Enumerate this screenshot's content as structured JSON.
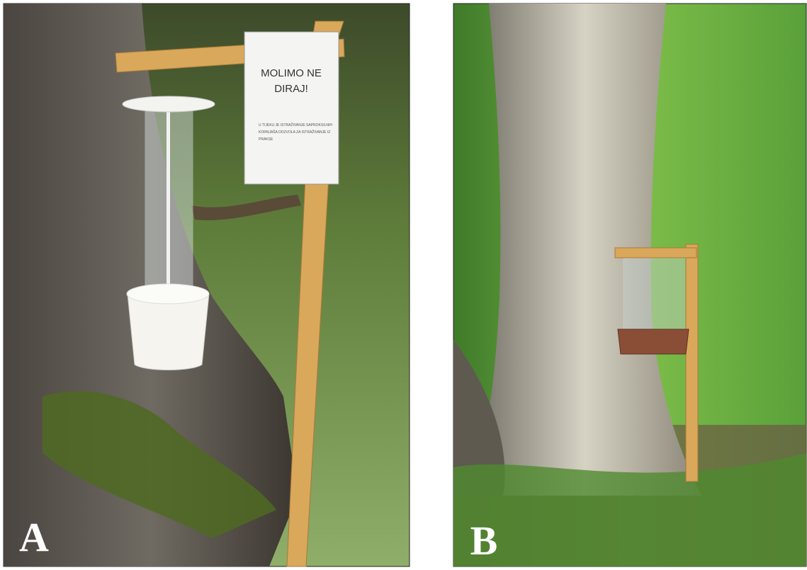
{
  "panels": [
    {
      "label": "A",
      "sign": {
        "heading": [
          "MOLIMO NE",
          "DIRAJ!"
        ],
        "text": [
          "U TIJEKU JE ISTRAŽIVANJE SAPROKSILNIH",
          "KORNJAŠA DOZVOLA ZA ISTRAŽIVANJE IZ",
          "PRAKSE"
        ]
      }
    },
    {
      "label": "B"
    }
  ]
}
